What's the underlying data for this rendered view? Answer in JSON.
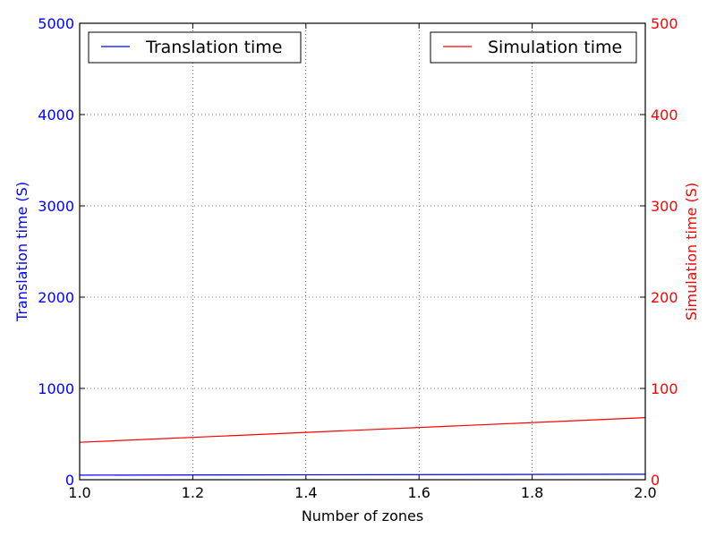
{
  "chart_data": {
    "type": "line",
    "title": "",
    "xlabel": "Number of zones",
    "x_ticks": [
      1.0,
      1.2,
      1.4,
      1.6,
      1.8,
      2.0
    ],
    "x_tick_labels": [
      "1.0",
      "1.2",
      "1.4",
      "1.6",
      "1.8",
      "2.0"
    ],
    "xlim": [
      1.0,
      2.0
    ],
    "grid": true,
    "y_left": {
      "label": "Translation time (S)",
      "ylim": [
        0,
        5000
      ],
      "ticks": [
        0,
        1000,
        2000,
        3000,
        4000,
        5000
      ],
      "tick_labels": [
        "0",
        "1000",
        "2000",
        "3000",
        "4000",
        "5000"
      ],
      "color": "#0000ff"
    },
    "y_right": {
      "label": "Simulation time (S)",
      "ylim": [
        0,
        500
      ],
      "ticks": [
        0,
        100,
        200,
        300,
        400,
        500
      ],
      "tick_labels": [
        "0",
        "100",
        "200",
        "300",
        "400",
        "500"
      ],
      "color": "#ff0000"
    },
    "series": [
      {
        "name": "Translation time",
        "axis": "left",
        "color": "#0000ff",
        "x": [
          1.0,
          2.0
        ],
        "y": [
          50,
          60
        ]
      },
      {
        "name": "Simulation time",
        "axis": "right",
        "color": "#ff0000",
        "x": [
          1.0,
          2.0
        ],
        "y": [
          41,
          68
        ]
      }
    ],
    "legends": [
      {
        "series": "Translation time",
        "placement": "top-left"
      },
      {
        "series": "Simulation time",
        "placement": "top-right"
      }
    ]
  }
}
